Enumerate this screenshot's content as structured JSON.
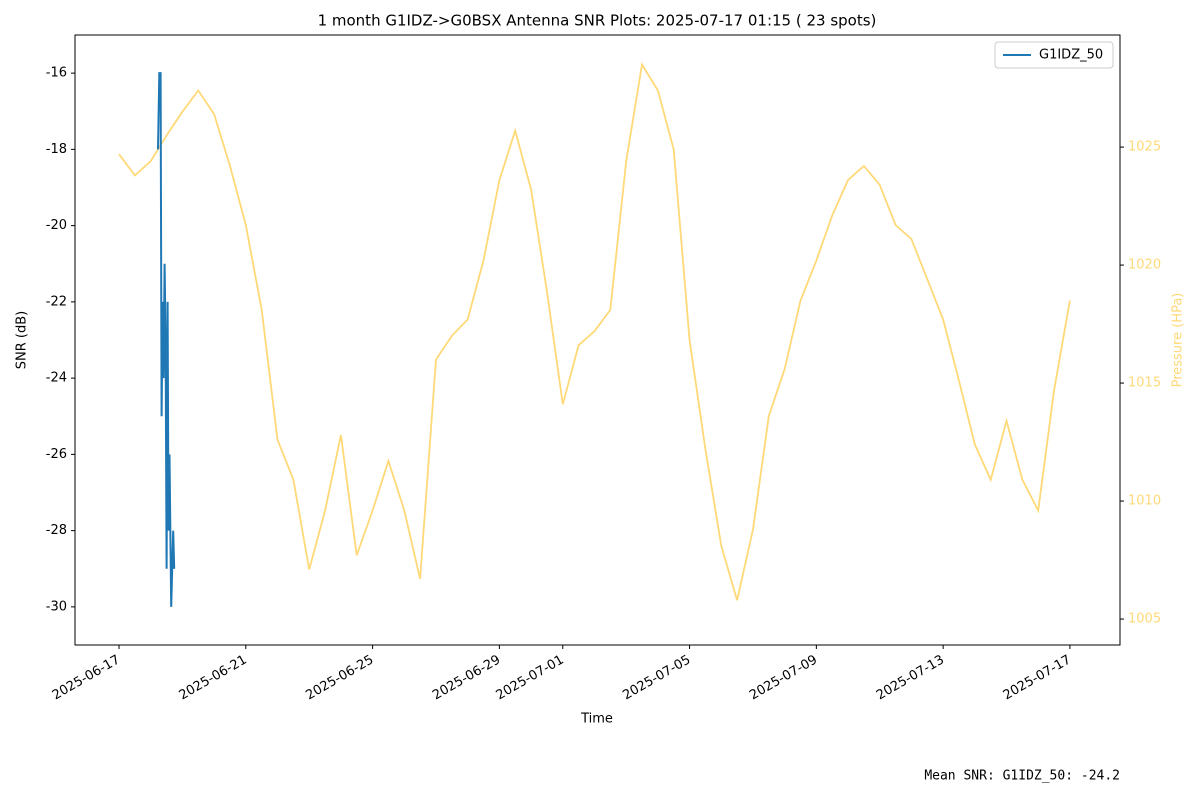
{
  "chart_data": {
    "type": "line",
    "title": "1 month G1IDZ->G0BSX Antenna SNR Plots: 2025-07-17 01:15  ( 23 spots)",
    "x_label": "Time",
    "y_label": "SNR (dB)",
    "y2_label": "Pressure (HPa)",
    "annotation": "Mean SNR: G1IDZ_50: -24.2",
    "legend": "upper right",
    "xlim": [
      "2025-06-15 14:40",
      "2025-07-18 13:55"
    ],
    "xticks": [
      "2025-06-17",
      "2025-06-21",
      "2025-06-25",
      "2025-06-29",
      "2025-07-01",
      "2025-07-05",
      "2025-07-09",
      "2025-07-13",
      "2025-07-17"
    ],
    "ylim": [
      -31,
      -15
    ],
    "yticks": [
      -30,
      -28,
      -26,
      -24,
      -22,
      -20,
      -18,
      -16
    ],
    "y2lim": [
      1003.9,
      1029.75
    ],
    "y2ticks": [
      1005,
      1010,
      1015,
      1020,
      1025
    ],
    "series": [
      {
        "name": "G1IDZ_50",
        "color": "#1f77b4",
        "x": [
          "2025-06-18 05:30",
          "2025-06-18 06:30",
          "2025-06-18 07:30",
          "2025-06-18 08:15",
          "2025-06-18 09:00",
          "2025-06-18 09:45",
          "2025-06-18 10:30",
          "2025-06-18 11:15",
          "2025-06-18 12:00",
          "2025-06-18 12:45",
          "2025-06-18 13:30",
          "2025-06-18 14:15",
          "2025-06-18 15:30",
          "2025-06-18 17:00",
          "2025-06-18 17:45"
        ],
        "values": [
          -18,
          -16,
          -16,
          -25,
          -22,
          -24,
          -21,
          -23,
          -29,
          -22,
          -28,
          -26,
          -30,
          -28,
          -29
        ]
      },
      {
        "color": "#ffd978",
        "axis": "y2",
        "x": [
          "2025-06-17 00:00",
          "2025-06-17 12:00",
          "2025-06-18 00:00",
          "2025-06-18 12:00",
          "2025-06-19 00:00",
          "2025-06-19 12:00",
          "2025-06-20 00:00",
          "2025-06-20 12:00",
          "2025-06-21 00:00",
          "2025-06-21 12:00",
          "2025-06-22 00:00",
          "2025-06-22 12:00",
          "2025-06-23 00:00",
          "2025-06-23 12:00",
          "2025-06-24 00:00",
          "2025-06-24 12:00",
          "2025-06-25 00:00",
          "2025-06-25 12:00",
          "2025-06-26 00:00",
          "2025-06-26 12:00",
          "2025-06-27 00:00",
          "2025-06-27 12:00",
          "2025-06-28 00:00",
          "2025-06-28 12:00",
          "2025-06-29 00:00",
          "2025-06-29 12:00",
          "2025-06-30 00:00",
          "2025-06-30 12:00",
          "2025-07-01 00:00",
          "2025-07-01 12:00",
          "2025-07-02 00:00",
          "2025-07-02 12:00",
          "2025-07-03 00:00",
          "2025-07-03 12:00",
          "2025-07-04 00:00",
          "2025-07-04 12:00",
          "2025-07-05 00:00",
          "2025-07-05 12:00",
          "2025-07-06 00:00",
          "2025-07-06 12:00",
          "2025-07-07 00:00",
          "2025-07-07 12:00",
          "2025-07-08 00:00",
          "2025-07-08 12:00",
          "2025-07-09 00:00",
          "2025-07-09 12:00",
          "2025-07-10 00:00",
          "2025-07-10 12:00",
          "2025-07-11 00:00",
          "2025-07-11 12:00",
          "2025-07-12 00:00",
          "2025-07-12 12:00",
          "2025-07-13 00:00",
          "2025-07-13 12:00",
          "2025-07-14 00:00",
          "2025-07-14 12:00",
          "2025-07-15 00:00",
          "2025-07-15 12:00",
          "2025-07-16 00:00",
          "2025-07-16 12:00",
          "2025-07-17 00:00"
        ],
        "values": [
          1024.7,
          1023.8,
          1024.4,
          1025.5,
          1026.5,
          1027.4,
          1026.4,
          1024.2,
          1021.7,
          1018.1,
          1012.6,
          1010.9,
          1007.1,
          1009.6,
          1012.8,
          1007.7,
          1009.6,
          1011.7,
          1009.6,
          1006.7,
          1016.0,
          1017.0,
          1017.7,
          1020.2,
          1023.6,
          1025.7,
          1023.2,
          1018.9,
          1014.1,
          1016.6,
          1017.2,
          1018.1,
          1024.4,
          1028.5,
          1027.4,
          1024.9,
          1016.8,
          1012.2,
          1008.1,
          1005.8,
          1008.8,
          1013.6,
          1015.6,
          1018.5,
          1020.2,
          1022.1,
          1023.6,
          1024.2,
          1023.4,
          1021.7,
          1021.1,
          1019.4,
          1017.7,
          1015.1,
          1012.4,
          1010.9,
          1013.4,
          1010.9,
          1009.6,
          1014.7,
          1018.5
        ]
      }
    ]
  }
}
